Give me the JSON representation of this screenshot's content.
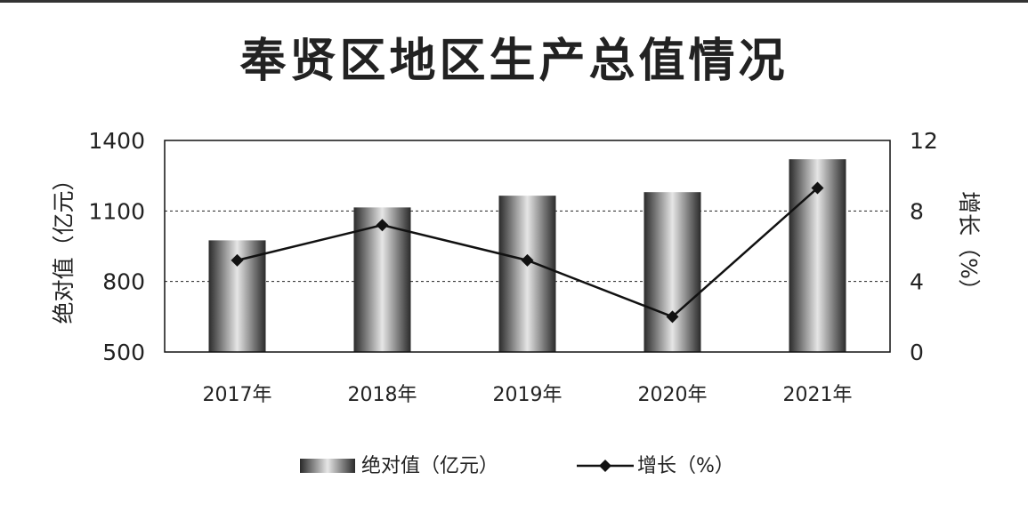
{
  "title": "奉贤区地区生产总值情况",
  "chart_data": {
    "type": "bar",
    "title": "奉贤区地区生产总值情况",
    "categories": [
      "2017年",
      "2018年",
      "2019年",
      "2020年",
      "2021年"
    ],
    "series": [
      {
        "name": "绝对值（亿元）",
        "type": "bar",
        "axis": "left",
        "values": [
          975,
          1115,
          1165,
          1180,
          1320
        ]
      },
      {
        "name": "增长（%）",
        "type": "line",
        "axis": "right",
        "values": [
          5.2,
          7.2,
          5.2,
          2.0,
          9.3
        ]
      }
    ],
    "y_left": {
      "label": "绝对值（亿元）",
      "range": [
        500,
        1400
      ],
      "ticks": [
        500,
        800,
        1100,
        1400
      ]
    },
    "y_right": {
      "label": "增长（%）",
      "range": [
        0,
        12
      ],
      "ticks": [
        0,
        4,
        8,
        12
      ]
    },
    "grid": true,
    "legend_position": "bottom"
  }
}
